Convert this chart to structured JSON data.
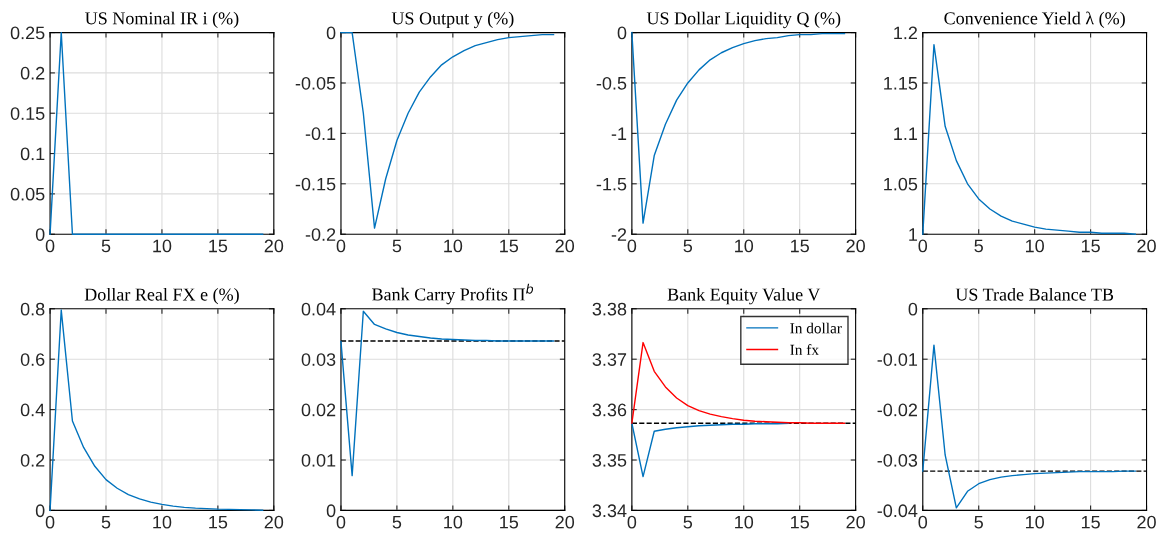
{
  "chart_data": [
    {
      "type": "line",
      "title": "US Nominal IR i (%)",
      "x": [
        0,
        1,
        2,
        3,
        4,
        5,
        6,
        7,
        8,
        9,
        10,
        11,
        12,
        13,
        14,
        15,
        16,
        17,
        18,
        19
      ],
      "xlim": [
        0,
        20
      ],
      "xticks": [
        0,
        5,
        10,
        15,
        20
      ],
      "ylim": [
        0,
        0.25
      ],
      "yticks": [
        0,
        0.05,
        0.1,
        0.15,
        0.2,
        0.25
      ],
      "grid": true,
      "series": [
        {
          "color": "#0072bd",
          "values": [
            0,
            0.25,
            0,
            0,
            0,
            0,
            0,
            0,
            0,
            0,
            0,
            0,
            0,
            0,
            0,
            0,
            0,
            0,
            0,
            0
          ]
        }
      ]
    },
    {
      "type": "line",
      "title": "US Output y (%)",
      "x": [
        0,
        1,
        2,
        3,
        4,
        5,
        6,
        7,
        8,
        9,
        10,
        11,
        12,
        13,
        14,
        15,
        16,
        17,
        18,
        19
      ],
      "xlim": [
        0,
        20
      ],
      "xticks": [
        0,
        5,
        10,
        15,
        20
      ],
      "ylim": [
        -0.2,
        0
      ],
      "yticks": [
        -0.2,
        -0.15,
        -0.1,
        -0.05,
        0
      ],
      "grid": true,
      "series": [
        {
          "color": "#0072bd",
          "values": [
            0,
            0,
            -0.08,
            -0.194,
            -0.145,
            -0.107,
            -0.08,
            -0.059,
            -0.044,
            -0.032,
            -0.024,
            -0.018,
            -0.013,
            -0.01,
            -0.007,
            -0.005,
            -0.004,
            -0.003,
            -0.002,
            -0.002
          ]
        }
      ]
    },
    {
      "type": "line",
      "title": "US Dollar Liquidity Q (%)",
      "x": [
        0,
        1,
        2,
        3,
        4,
        5,
        6,
        7,
        8,
        9,
        10,
        11,
        12,
        13,
        14,
        15,
        16,
        17,
        18,
        19
      ],
      "xlim": [
        0,
        20
      ],
      "xticks": [
        0,
        5,
        10,
        15,
        20
      ],
      "ylim": [
        -2,
        0
      ],
      "yticks": [
        -2,
        -1.5,
        -1,
        -0.5,
        0
      ],
      "grid": true,
      "series": [
        {
          "color": "#0072bd",
          "values": [
            0,
            -1.89,
            -1.22,
            -0.91,
            -0.67,
            -0.5,
            -0.37,
            -0.27,
            -0.2,
            -0.15,
            -0.11,
            -0.08,
            -0.06,
            -0.05,
            -0.03,
            -0.02,
            -0.02,
            -0.01,
            -0.01,
            -0.01
          ]
        }
      ]
    },
    {
      "type": "line",
      "title": "Convenience Yield λ (%)",
      "x": [
        0,
        1,
        2,
        3,
        4,
        5,
        6,
        7,
        8,
        9,
        10,
        11,
        12,
        13,
        14,
        15,
        16,
        17,
        18,
        19
      ],
      "xlim": [
        0,
        20
      ],
      "xticks": [
        0,
        5,
        10,
        15,
        20
      ],
      "ylim": [
        1,
        1.2
      ],
      "yticks": [
        1,
        1.05,
        1.1,
        1.15,
        1.2
      ],
      "grid": true,
      "series": [
        {
          "color": "#0072bd",
          "values": [
            1,
            1.188,
            1.107,
            1.073,
            1.05,
            1.035,
            1.025,
            1.018,
            1.013,
            1.01,
            1.007,
            1.005,
            1.004,
            1.003,
            1.002,
            1.002,
            1.001,
            1.001,
            1.001,
            1
          ]
        }
      ]
    },
    {
      "type": "line",
      "title": "Dollar Real FX e (%)",
      "x": [
        0,
        1,
        2,
        3,
        4,
        5,
        6,
        7,
        8,
        9,
        10,
        11,
        12,
        13,
        14,
        15,
        16,
        17,
        18,
        19
      ],
      "xlim": [
        0,
        20
      ],
      "xticks": [
        0,
        5,
        10,
        15,
        20
      ],
      "ylim": [
        0,
        0.8
      ],
      "yticks": [
        0,
        0.2,
        0.4,
        0.6,
        0.8
      ],
      "grid": true,
      "series": [
        {
          "color": "#0072bd",
          "values": [
            0,
            0.795,
            0.355,
            0.25,
            0.175,
            0.122,
            0.088,
            0.063,
            0.046,
            0.033,
            0.024,
            0.017,
            0.012,
            0.009,
            0.007,
            0.005,
            0.004,
            0.003,
            0.002,
            0.001
          ]
        }
      ]
    },
    {
      "type": "line",
      "title": "Bank Carry Profits Π$^{b}$",
      "x": [
        0,
        1,
        2,
        3,
        4,
        5,
        6,
        7,
        8,
        9,
        10,
        11,
        12,
        13,
        14,
        15,
        16,
        17,
        18,
        19
      ],
      "xlim": [
        0,
        20
      ],
      "xticks": [
        0,
        5,
        10,
        15,
        20
      ],
      "ylim": [
        0,
        0.04
      ],
      "yticks": [
        0,
        0.01,
        0.02,
        0.03,
        0.04
      ],
      "grid": true,
      "ref_lines": [
        {
          "axis": "y",
          "value": 0.0336,
          "color": "#000000",
          "line_style": "dashed"
        }
      ],
      "series": [
        {
          "color": "#0072bd",
          "values": [
            0.0335,
            0.0069,
            0.0395,
            0.0369,
            0.036,
            0.0353,
            0.0348,
            0.0345,
            0.0342,
            0.034,
            0.0339,
            0.0338,
            0.0337,
            0.0337,
            0.0336,
            0.0336,
            0.0336,
            0.0336,
            0.0336,
            0.0336
          ]
        }
      ]
    },
    {
      "type": "line",
      "title": "Bank Equity Value V",
      "x": [
        0,
        1,
        2,
        3,
        4,
        5,
        6,
        7,
        8,
        9,
        10,
        11,
        12,
        13,
        14,
        15,
        16,
        17,
        18,
        19
      ],
      "xlim": [
        0,
        20
      ],
      "xticks": [
        0,
        5,
        10,
        15,
        20
      ],
      "ylim": [
        3.34,
        3.38
      ],
      "yticks": [
        3.34,
        3.35,
        3.36,
        3.37,
        3.38
      ],
      "grid": true,
      "legend": "top right",
      "ref_lines": [
        {
          "axis": "y",
          "value": 3.3573,
          "color": "#000000",
          "line_style": "dashed"
        }
      ],
      "series": [
        {
          "name": "In dollar",
          "color": "#0072bd",
          "values": [
            3.3573,
            3.3467,
            3.3557,
            3.3561,
            3.3564,
            3.3566,
            3.3568,
            3.3569,
            3.357,
            3.3571,
            3.3571,
            3.3572,
            3.3572,
            3.3572,
            3.3573,
            null,
            null,
            null,
            null,
            null
          ]
        },
        {
          "name": "In fx",
          "color": "#ff0000",
          "values": [
            3.3573,
            3.3733,
            3.3676,
            3.3645,
            3.3623,
            3.3608,
            3.3598,
            3.3591,
            3.3586,
            3.3582,
            3.3579,
            3.3577,
            3.3576,
            3.3575,
            3.3574,
            3.3574,
            3.3573,
            3.3573,
            3.3573,
            3.3573
          ]
        }
      ]
    },
    {
      "type": "line",
      "title": "US Trade Balance TB",
      "x": [
        0,
        1,
        2,
        3,
        4,
        5,
        6,
        7,
        8,
        9,
        10,
        11,
        12,
        13,
        14,
        15,
        16,
        17,
        18,
        19
      ],
      "xlim": [
        0,
        20
      ],
      "xticks": [
        0,
        5,
        10,
        15,
        20
      ],
      "ylim": [
        -0.04,
        0
      ],
      "yticks": [
        -0.04,
        -0.03,
        -0.02,
        -0.01,
        0
      ],
      "grid": true,
      "ref_lines": [
        {
          "axis": "y",
          "value": -0.0322,
          "color": "#000000",
          "line_style": "dashed"
        }
      ],
      "series": [
        {
          "color": "#0072bd",
          "values": [
            -0.0322,
            -0.0072,
            -0.029,
            -0.0395,
            -0.0362,
            -0.0347,
            -0.0339,
            -0.0334,
            -0.0331,
            -0.0329,
            -0.0327,
            -0.0326,
            -0.0325,
            -0.0324,
            -0.0323,
            -0.0323,
            -0.0323,
            -0.0323,
            -0.0322,
            -0.0322
          ]
        }
      ]
    }
  ]
}
